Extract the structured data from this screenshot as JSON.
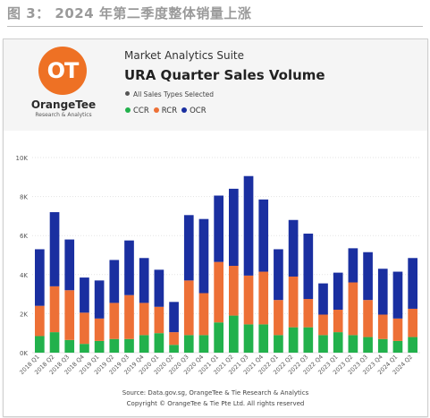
{
  "caption": "图 3： 2024 年第二季度整体销量上涨",
  "header": {
    "logo_mark": "OT",
    "brand_name": "OrangeTee",
    "brand_sub": "Research & Analytics",
    "suite": "Market Analytics Suite",
    "title": "URA Quarter Sales Volume",
    "filter": "All Sales Types Selected"
  },
  "colors": {
    "CCR": "#22b14c",
    "RCR": "#ed7036",
    "OCR": "#1a2fa0",
    "logo": "#ee7124",
    "header_bg": "#f5f5f5"
  },
  "footer": {
    "source": "Source: Data.gov.sg, OrangeTee & Tie Research & Analytics",
    "copyright": "Copyright © OrangeTee & Tie Pte Ltd. All rights reserved"
  },
  "chart_data": {
    "type": "bar",
    "stacked": true,
    "categories": [
      "2018 Q1",
      "2018 Q2",
      "2018 Q3",
      "2018 Q4",
      "2019 Q1",
      "2019 Q2",
      "2019 Q3",
      "2019 Q4",
      "2020 Q1",
      "2020 Q2",
      "2020 Q3",
      "2020 Q4",
      "2021 Q1",
      "2021 Q2",
      "2021 Q3",
      "2021 Q4",
      "2022 Q1",
      "2022 Q2",
      "2022 Q3",
      "2022 Q4",
      "2023 Q1",
      "2023 Q2",
      "2023 Q3",
      "2023 Q4",
      "2024 Q1",
      "2024 Q2"
    ],
    "series": [
      {
        "name": "CCR",
        "values": [
          850,
          1050,
          650,
          450,
          600,
          700,
          700,
          900,
          1000,
          400,
          900,
          900,
          1550,
          1900,
          1450,
          1450,
          900,
          1300,
          1300,
          900,
          1050,
          900,
          800,
          700,
          600,
          800
        ]
      },
      {
        "name": "RCR",
        "values": [
          1550,
          2350,
          2550,
          1600,
          1150,
          1850,
          2250,
          1650,
          1350,
          650,
          2800,
          2150,
          3100,
          2550,
          2500,
          2700,
          1800,
          2600,
          1450,
          1050,
          1150,
          2700,
          1900,
          1250,
          1150,
          1450
        ]
      },
      {
        "name": "OCR",
        "values": [
          2900,
          3800,
          2600,
          1800,
          1950,
          2200,
          2800,
          2300,
          1900,
          1550,
          3350,
          3800,
          3400,
          3950,
          5100,
          3700,
          2600,
          2900,
          3350,
          1600,
          1900,
          1750,
          2450,
          2350,
          2400,
          2600
        ]
      }
    ],
    "yticks": [
      0,
      2000,
      4000,
      6000,
      8000,
      10000
    ],
    "ytick_labels": [
      "0K",
      "2K",
      "4K",
      "6K",
      "8K",
      "10K"
    ],
    "ylim": [
      0,
      10000
    ],
    "grid": true,
    "legend": "top-left"
  }
}
